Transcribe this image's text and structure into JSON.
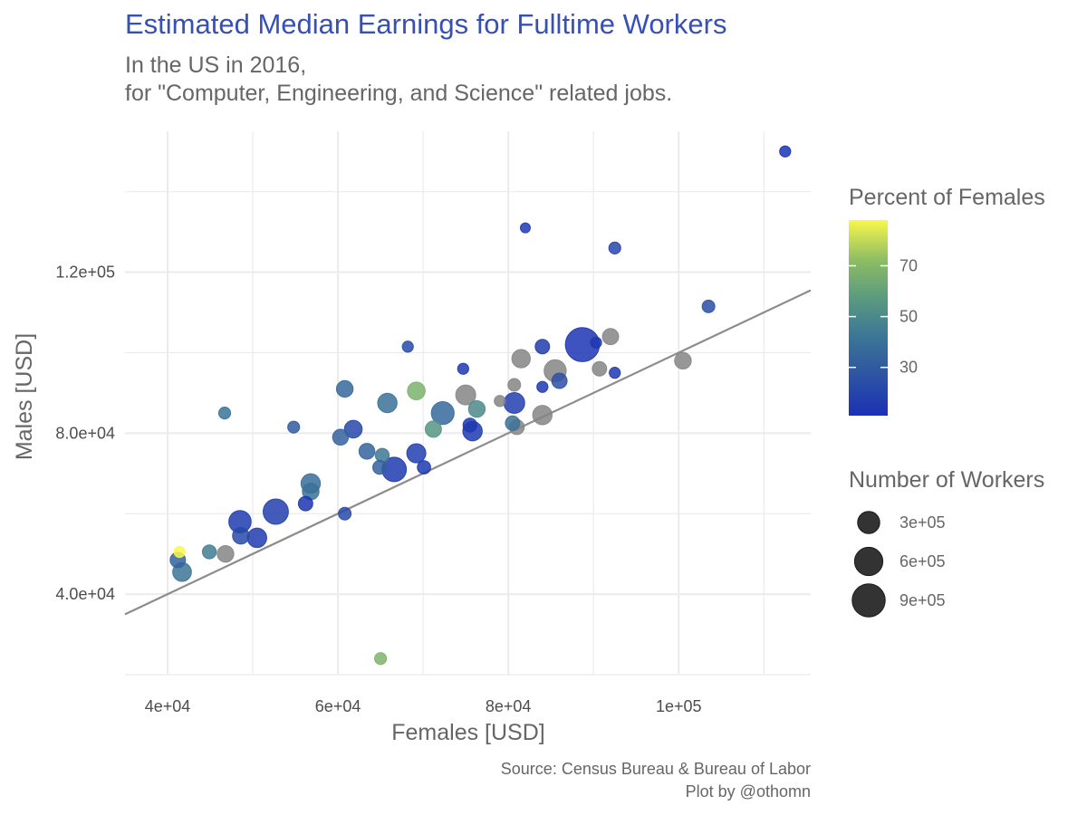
{
  "chart_data": {
    "type": "scatter",
    "title": "Estimated Median Earnings for Fulltime Workers",
    "subtitle_lines": [
      "In the US in 2016,",
      "for \"Computer, Engineering, and Science\" related jobs."
    ],
    "xlabel": "Females   [USD]",
    "ylabel": "Males   [USD]",
    "xlim": [
      35000,
      115500
    ],
    "ylim": [
      20000,
      155000
    ],
    "x_ticks": [
      40000,
      60000,
      80000,
      100000
    ],
    "x_tick_labels": [
      "4e+04",
      "6e+04",
      "8e+04",
      "1e+05"
    ],
    "y_ticks": [
      40000,
      80000,
      120000
    ],
    "y_tick_labels": [
      "4.0e+04",
      "8.0e+04",
      "1.2e+05"
    ],
    "grid": true,
    "reference_line": "y = x",
    "caption_lines": [
      "Source: Census Bureau & Bureau of Labor",
      "Plot by @othomn"
    ],
    "color_legend": {
      "title": "Percent of Females",
      "ticks": [
        30,
        50,
        70
      ],
      "range": [
        11,
        88
      ],
      "colors": [
        "#1a31b5",
        "#2e53a3",
        "#3b7597",
        "#5a9a7f",
        "#8fbe63",
        "#f7f84a"
      ]
    },
    "size_legend": {
      "title": "Number of Workers",
      "values": [
        300000,
        600000,
        900000
      ],
      "labels": [
        "3e+05",
        "6e+05",
        "9e+05"
      ]
    },
    "na_color": "#858585",
    "points": [
      {
        "x": 112500,
        "y": 150000,
        "workers": 20000,
        "pct_female": 12
      },
      {
        "x": 82000,
        "y": 131000,
        "workers": 10000,
        "pct_female": 15
      },
      {
        "x": 92500,
        "y": 126000,
        "workers": 30000,
        "pct_female": 20
      },
      {
        "x": 103500,
        "y": 111500,
        "workers": 40000,
        "pct_female": 24
      },
      {
        "x": 88700,
        "y": 102000,
        "workers": 980000,
        "pct_female": 13
      },
      {
        "x": 90300,
        "y": 102500,
        "workers": 20000,
        "pct_female": 14
      },
      {
        "x": 92000,
        "y": 104000,
        "workers": 110000,
        "pct_female": null
      },
      {
        "x": 84000,
        "y": 101500,
        "workers": 70000,
        "pct_female": 16
      },
      {
        "x": 81500,
        "y": 98500,
        "workers": 170000,
        "pct_female": null
      },
      {
        "x": 85500,
        "y": 95500,
        "workers": 300000,
        "pct_female": null
      },
      {
        "x": 90700,
        "y": 96000,
        "workers": 70000,
        "pct_female": null
      },
      {
        "x": 100500,
        "y": 98000,
        "workers": 120000,
        "pct_female": null
      },
      {
        "x": 92500,
        "y": 95000,
        "workers": 20000,
        "pct_female": 14
      },
      {
        "x": 74700,
        "y": 96000,
        "workers": 20000,
        "pct_female": 14
      },
      {
        "x": 68200,
        "y": 101500,
        "workers": 20000,
        "pct_female": 22
      },
      {
        "x": 80700,
        "y": 92000,
        "workers": 40000,
        "pct_female": null
      },
      {
        "x": 84000,
        "y": 91500,
        "workers": 20000,
        "pct_female": 14
      },
      {
        "x": 86000,
        "y": 93000,
        "workers": 90000,
        "pct_female": 25
      },
      {
        "x": 75000,
        "y": 89500,
        "workers": 220000,
        "pct_female": null
      },
      {
        "x": 79000,
        "y": 88000,
        "workers": 20000,
        "pct_female": null
      },
      {
        "x": 80700,
        "y": 87500,
        "workers": 250000,
        "pct_female": 17
      },
      {
        "x": 76300,
        "y": 86000,
        "workers": 120000,
        "pct_female": 50
      },
      {
        "x": 72300,
        "y": 85000,
        "workers": 330000,
        "pct_female": 36
      },
      {
        "x": 84000,
        "y": 84500,
        "workers": 200000,
        "pct_female": null
      },
      {
        "x": 80500,
        "y": 82500,
        "workers": 70000,
        "pct_female": 40
      },
      {
        "x": 81000,
        "y": 81500,
        "workers": 80000,
        "pct_female": null
      },
      {
        "x": 75500,
        "y": 82000,
        "workers": 60000,
        "pct_female": 14
      },
      {
        "x": 75800,
        "y": 80500,
        "workers": 200000,
        "pct_female": 15
      },
      {
        "x": 69200,
        "y": 90500,
        "workers": 150000,
        "pct_female": 67
      },
      {
        "x": 71200,
        "y": 81000,
        "workers": 110000,
        "pct_female": 55
      },
      {
        "x": 60800,
        "y": 91000,
        "workers": 120000,
        "pct_female": 36
      },
      {
        "x": 61800,
        "y": 81000,
        "workers": 150000,
        "pct_female": 21
      },
      {
        "x": 60300,
        "y": 79000,
        "workers": 100000,
        "pct_female": 33
      },
      {
        "x": 65800,
        "y": 87500,
        "workers": 200000,
        "pct_female": 40
      },
      {
        "x": 63400,
        "y": 75500,
        "workers": 100000,
        "pct_female": 34
      },
      {
        "x": 65200,
        "y": 74500,
        "workers": 60000,
        "pct_female": 43
      },
      {
        "x": 64900,
        "y": 71500,
        "workers": 60000,
        "pct_female": 32
      },
      {
        "x": 66600,
        "y": 71000,
        "workers": 400000,
        "pct_female": 15
      },
      {
        "x": 69200,
        "y": 75000,
        "workers": 190000,
        "pct_female": 17
      },
      {
        "x": 70100,
        "y": 71500,
        "workers": 50000,
        "pct_female": 15
      },
      {
        "x": 54800,
        "y": 81500,
        "workers": 30000,
        "pct_female": 30
      },
      {
        "x": 46700,
        "y": 85000,
        "workers": 30000,
        "pct_female": 41
      },
      {
        "x": 56800,
        "y": 67500,
        "workers": 200000,
        "pct_female": 38
      },
      {
        "x": 56800,
        "y": 65500,
        "workers": 120000,
        "pct_female": 40
      },
      {
        "x": 56200,
        "y": 62500,
        "workers": 70000,
        "pct_female": 13
      },
      {
        "x": 52700,
        "y": 60500,
        "workers": 440000,
        "pct_female": 18
      },
      {
        "x": 60800,
        "y": 60000,
        "workers": 40000,
        "pct_female": 22
      },
      {
        "x": 48500,
        "y": 58000,
        "workers": 310000,
        "pct_female": 16
      },
      {
        "x": 48600,
        "y": 54500,
        "workers": 120000,
        "pct_female": 22
      },
      {
        "x": 50500,
        "y": 54000,
        "workers": 200000,
        "pct_female": 16
      },
      {
        "x": 41400,
        "y": 50500,
        "workers": 20000,
        "pct_female": 88
      },
      {
        "x": 44900,
        "y": 50500,
        "workers": 60000,
        "pct_female": 45
      },
      {
        "x": 46800,
        "y": 50000,
        "workers": 120000,
        "pct_female": null
      },
      {
        "x": 41200,
        "y": 48500,
        "workers": 90000,
        "pct_female": 33
      },
      {
        "x": 41700,
        "y": 45500,
        "workers": 180000,
        "pct_female": 42
      },
      {
        "x": 65000,
        "y": 24000,
        "workers": 30000,
        "pct_female": 68
      }
    ]
  }
}
